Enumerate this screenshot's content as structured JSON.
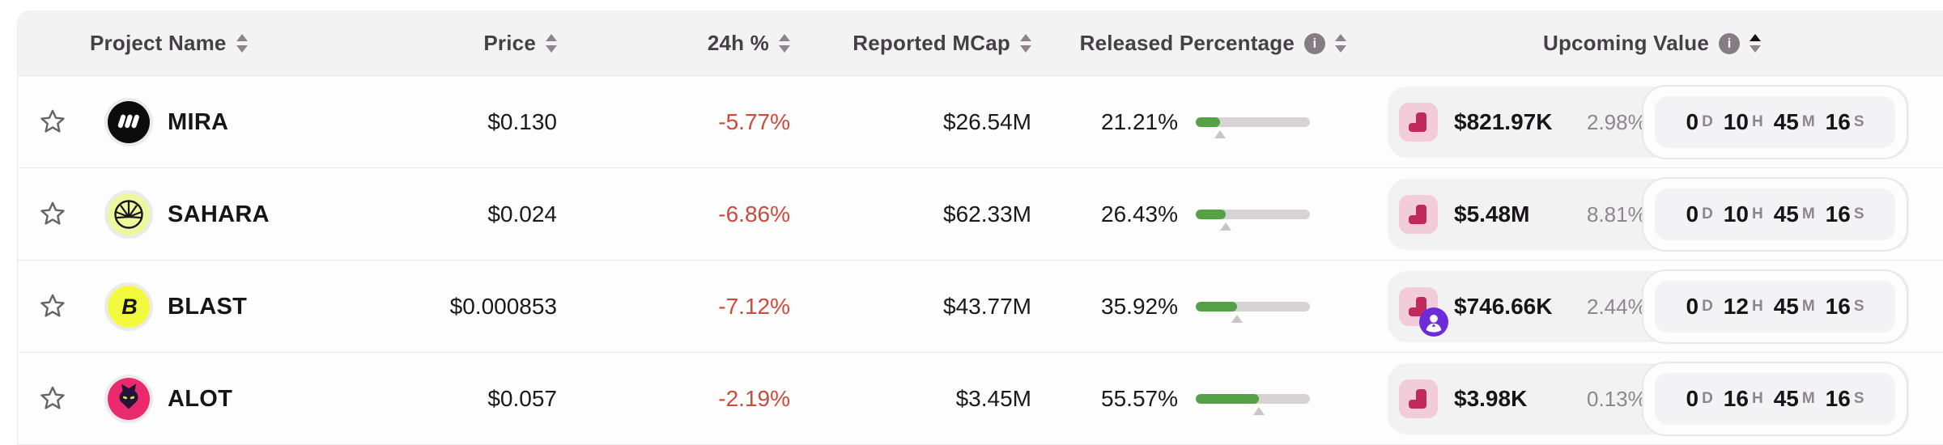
{
  "colors": {
    "negative_change": "#cd4a3c",
    "progress_green": "#55a146",
    "progress_track": "#d7d3d4",
    "cliff_icon_bg": "#f2ccd8",
    "cliff_icon_glyph": "#c1295d",
    "investor_badge_purple": "#6d2bd9",
    "header_bg": "#f4f3f4",
    "muted_text": "#8d8590"
  },
  "icons": {
    "info_glyph": "i",
    "favorite": "star-icon",
    "sort": "sort-arrows-icon",
    "info": "info-icon",
    "unlock_type": "cliff-unlock-icon",
    "investor": "investor-badge-icon"
  },
  "logo_glyphs": {
    "blast": "B"
  },
  "table": {
    "countdown_units": {
      "d": "D",
      "h": "H",
      "m": "M",
      "s": "S"
    },
    "columns": [
      {
        "label": "Project Name",
        "has_info": false,
        "sort": "none"
      },
      {
        "label": "Price",
        "has_info": false,
        "sort": "none"
      },
      {
        "label": "24h %",
        "has_info": false,
        "sort": "none"
      },
      {
        "label": "Reported MCap",
        "has_info": false,
        "sort": "none"
      },
      {
        "label": "Released Percentage",
        "has_info": true,
        "sort": "none"
      },
      {
        "label": "Upcoming Value",
        "has_info": true,
        "sort": "asc"
      }
    ],
    "rows": [
      {
        "name": "MIRA",
        "logo_id": "mira",
        "price": "$0.130",
        "change_24h": "-5.77%",
        "reported_mcap": "$26.54M",
        "released_pct": "21.21%",
        "released_num": 21.21,
        "upcoming": {
          "value": "$821.97K",
          "percent": "2.98%",
          "has_badge": false,
          "countdown": {
            "d": "0",
            "h": "10",
            "m": "45",
            "s": "16"
          }
        }
      },
      {
        "name": "SAHARA",
        "logo_id": "sahara",
        "price": "$0.024",
        "change_24h": "-6.86%",
        "reported_mcap": "$62.33M",
        "released_pct": "26.43%",
        "released_num": 26.43,
        "upcoming": {
          "value": "$5.48M",
          "percent": "8.81%",
          "has_badge": false,
          "countdown": {
            "d": "0",
            "h": "10",
            "m": "45",
            "s": "16"
          }
        }
      },
      {
        "name": "BLAST",
        "logo_id": "blast",
        "price": "$0.000853",
        "change_24h": "-7.12%",
        "reported_mcap": "$43.77M",
        "released_pct": "35.92%",
        "released_num": 35.92,
        "upcoming": {
          "value": "$746.66K",
          "percent": "2.44%",
          "has_badge": true,
          "countdown": {
            "d": "0",
            "h": "12",
            "m": "45",
            "s": "16"
          }
        }
      },
      {
        "name": "ALOT",
        "logo_id": "alot",
        "price": "$0.057",
        "change_24h": "-2.19%",
        "reported_mcap": "$3.45M",
        "released_pct": "55.57%",
        "released_num": 55.57,
        "upcoming": {
          "value": "$3.98K",
          "percent": "0.13%",
          "has_badge": false,
          "countdown": {
            "d": "0",
            "h": "16",
            "m": "45",
            "s": "16"
          }
        }
      }
    ]
  }
}
